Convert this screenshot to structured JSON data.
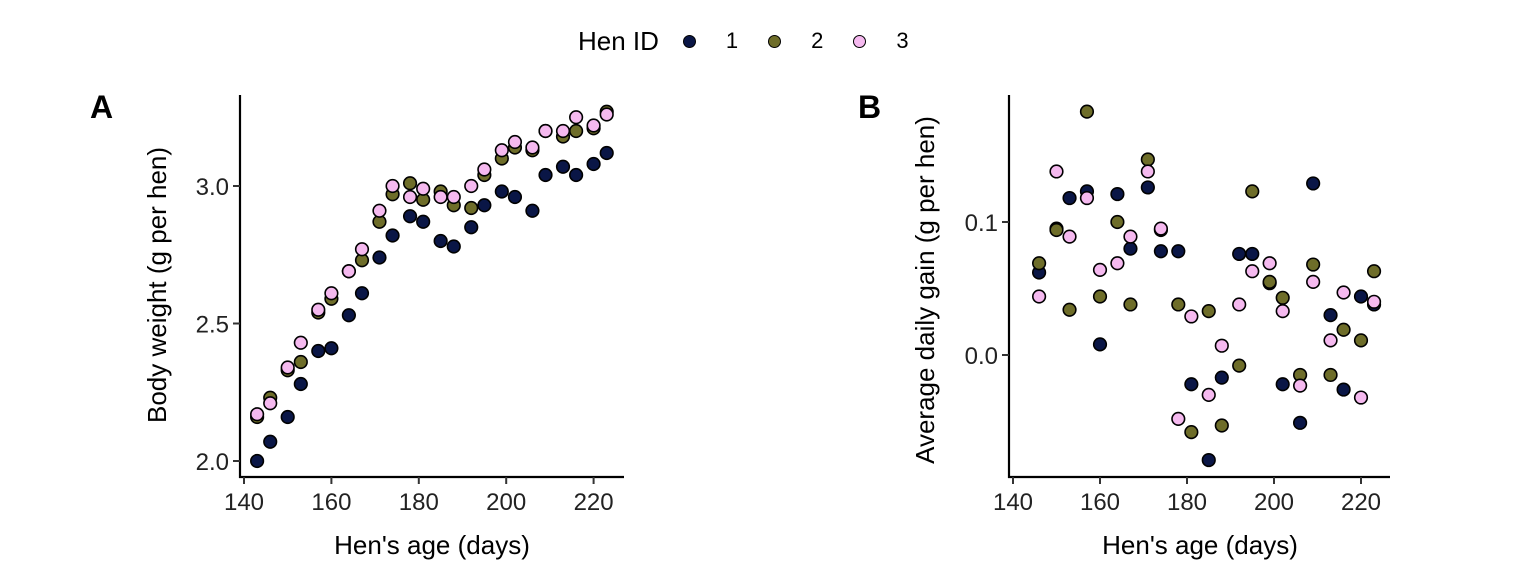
{
  "legend": {
    "title": "Hen ID",
    "items": [
      {
        "label": "1",
        "color": "#0a1646"
      },
      {
        "label": "2",
        "color": "#6e6d29"
      },
      {
        "label": "3",
        "color": "#f5b9ef"
      }
    ]
  },
  "chart_data": [
    {
      "type": "scatter",
      "panel": "A",
      "title": "",
      "xlabel": "Hen's age (days)",
      "ylabel": "Body weight (g per hen)",
      "xlim": [
        139,
        227
      ],
      "ylim": [
        1.96,
        3.33
      ],
      "xticks": [
        140,
        160,
        180,
        200,
        220
      ],
      "yticks": [
        2.0,
        2.5,
        3.0
      ],
      "ytick_labels": [
        "2.0",
        "2.5",
        "3.0"
      ],
      "grid": false,
      "legend_position": "top",
      "x": [
        143,
        146,
        150,
        153,
        157,
        160,
        164,
        167,
        171,
        174,
        178,
        181,
        185,
        188,
        192,
        195,
        199,
        202,
        206,
        209,
        213,
        216,
        220,
        223
      ],
      "series": [
        {
          "name": "1",
          "values": [
            2.0,
            2.07,
            2.16,
            2.28,
            2.4,
            2.41,
            2.53,
            2.61,
            2.74,
            2.82,
            2.89,
            2.87,
            2.8,
            2.78,
            2.85,
            2.93,
            2.98,
            2.96,
            2.91,
            3.04,
            3.07,
            3.04,
            3.08,
            3.12
          ]
        },
        {
          "name": "2",
          "values": [
            2.16,
            2.23,
            2.33,
            2.36,
            2.54,
            2.59,
            2.69,
            2.73,
            2.87,
            2.97,
            3.01,
            2.95,
            2.98,
            2.93,
            2.92,
            3.04,
            3.1,
            3.14,
            3.13,
            3.2,
            3.18,
            3.2,
            3.21,
            3.27
          ]
        },
        {
          "name": "3",
          "values": [
            2.17,
            2.21,
            2.34,
            2.43,
            2.55,
            2.61,
            2.69,
            2.77,
            2.91,
            3.0,
            2.96,
            2.99,
            2.96,
            2.96,
            3.0,
            3.06,
            3.13,
            3.16,
            3.14,
            3.2,
            3.2,
            3.25,
            3.22,
            3.26
          ]
        }
      ]
    },
    {
      "type": "scatter",
      "panel": "B",
      "title": "",
      "xlabel": "Hen's age (days)",
      "ylabel": "Average daily gain (g per hen)",
      "xlim": [
        139,
        227
      ],
      "ylim": [
        -0.092,
        0.196
      ],
      "xticks": [
        140,
        160,
        180,
        200,
        220
      ],
      "yticks": [
        0.0,
        0.1
      ],
      "ytick_labels": [
        "0.0",
        "0.1"
      ],
      "grid": false,
      "legend_position": "top",
      "x": [
        146,
        150,
        153,
        157,
        160,
        164,
        167,
        171,
        174,
        178,
        181,
        185,
        188,
        192,
        195,
        199,
        202,
        206,
        209,
        213,
        216,
        220,
        223
      ],
      "series": [
        {
          "name": "1",
          "values": [
            0.062,
            0.095,
            0.118,
            0.123,
            0.008,
            0.121,
            0.08,
            0.126,
            0.078,
            0.078,
            -0.022,
            -0.079,
            -0.017,
            0.076,
            0.076,
            0.054,
            -0.022,
            -0.051,
            0.129,
            0.03,
            -0.026,
            0.044,
            0.038
          ]
        },
        {
          "name": "2",
          "values": [
            0.069,
            0.094,
            0.034,
            0.183,
            0.044,
            0.1,
            0.038,
            0.147,
            0.094,
            0.038,
            -0.058,
            0.033,
            -0.053,
            -0.008,
            0.123,
            0.055,
            0.043,
            -0.015,
            0.068,
            -0.015,
            0.019,
            0.011,
            0.063
          ]
        },
        {
          "name": "3",
          "values": [
            0.044,
            0.138,
            0.089,
            0.118,
            0.064,
            0.069,
            0.089,
            0.138,
            0.095,
            -0.048,
            0.029,
            -0.03,
            0.007,
            0.038,
            0.063,
            0.069,
            0.033,
            -0.023,
            0.055,
            0.011,
            0.047,
            -0.032,
            0.04
          ]
        }
      ]
    }
  ]
}
